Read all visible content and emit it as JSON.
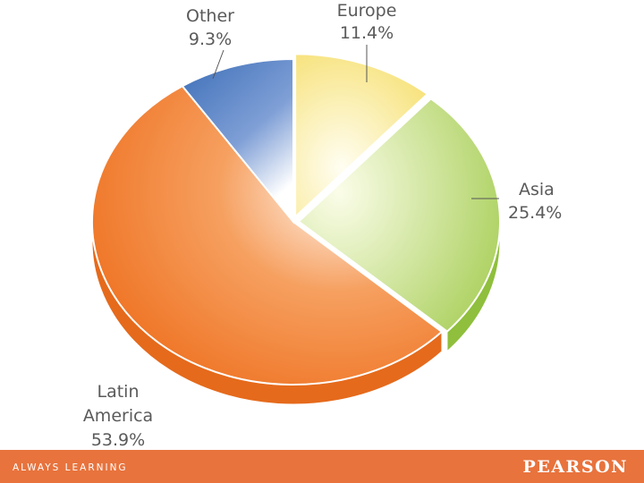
{
  "chart_data": {
    "type": "pie",
    "title": "",
    "categories": [
      "Europe",
      "Asia",
      "Latin America",
      "Other"
    ],
    "values": [
      11.4,
      25.4,
      53.9,
      9.3
    ],
    "labels": [
      "11.4%",
      "25.4%",
      "53.9%",
      "9.3%"
    ],
    "exploded": [
      "Europe",
      "Asia"
    ],
    "colors": {
      "Europe": "#f7e27a",
      "Asia": "#a9cf5a",
      "Latin America": "#ef7526",
      "Other": "#3d6fb8"
    }
  },
  "footer": {
    "tagline": "ALWAYS LEARNING",
    "logo": "PEARSON",
    "bar_color": "#e8733d"
  }
}
